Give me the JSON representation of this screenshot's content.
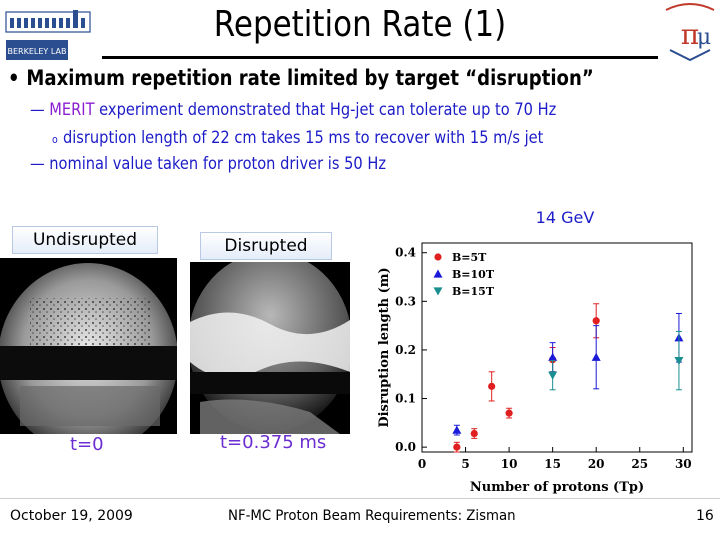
{
  "title": "Repetition Rate (1)",
  "logo_left": {
    "icon": "berkeley-lab-logo-icon",
    "text": "BERKELEY LAB"
  },
  "logo_right": {
    "icon": "neutrino-factory-muon-collider-logo-icon"
  },
  "bullet_main": "Maximum repetition rate limited by target “disruption”",
  "sub1": {
    "dash": "—",
    "highlight": "MERIT",
    "rest": " experiment demonstrated that Hg-jet can tolerate up to 70 Hz"
  },
  "sub2": {
    "marker": "o",
    "text": "disruption length of 22 cm takes 15 ms to recover with 15 m/s jet"
  },
  "sub3": {
    "dash": "—",
    "text": "nominal value taken for proton driver is 50 Hz"
  },
  "panels": {
    "undisrupted_caption": "Undisrupted",
    "disrupted_caption": "Disrupted",
    "undisrupted_time": "t=0",
    "disrupted_time": "t=0.375 ms"
  },
  "chart_annotation": "14 GeV",
  "chart_data": {
    "type": "scatter",
    "xlabel": "Number of protons (Tp)",
    "ylabel": "Disruption length (m)",
    "xlim": [
      0,
      31
    ],
    "ylim": [
      -0.01,
      0.42
    ],
    "xticks": [
      0,
      5,
      10,
      15,
      20,
      25,
      30
    ],
    "yticks": [
      0.0,
      0.1,
      0.2,
      0.3,
      0.4
    ],
    "xtick_labels": [
      "0",
      "5",
      "10",
      "15",
      "20",
      "25",
      "30"
    ],
    "ytick_labels": [
      "0.0",
      "0.1",
      "0.2",
      "0.3",
      "0.4"
    ],
    "legend_position": "top-left",
    "series": [
      {
        "name": "B=5T",
        "marker": "circle",
        "color": "#e02020",
        "points": [
          {
            "x": 4.0,
            "y": 0.0,
            "err": 0.01
          },
          {
            "x": 6.0,
            "y": 0.028,
            "err": 0.01
          },
          {
            "x": 8.0,
            "y": 0.125,
            "err": 0.03
          },
          {
            "x": 10.0,
            "y": 0.07,
            "err": 0.01
          },
          {
            "x": 15.0,
            "y": 0.18,
            "err": 0.025
          },
          {
            "x": 20.0,
            "y": 0.26,
            "err": 0.035
          }
        ]
      },
      {
        "name": "B=10T",
        "marker": "triangle-up",
        "color": "#1a1ad8",
        "points": [
          {
            "x": 4.0,
            "y": 0.035,
            "err": 0.01
          },
          {
            "x": 15.0,
            "y": 0.185,
            "err": 0.03
          },
          {
            "x": 20.0,
            "y": 0.185,
            "err": 0.065
          },
          {
            "x": 29.5,
            "y": 0.225,
            "err": 0.05
          }
        ]
      },
      {
        "name": "B=15T",
        "marker": "triangle-down",
        "color": "#1a8f8f",
        "points": [
          {
            "x": 15.0,
            "y": 0.148,
            "err": 0.03
          },
          {
            "x": 29.5,
            "y": 0.178,
            "err": 0.06
          }
        ]
      }
    ]
  },
  "footer": {
    "date": "October 19, 2009",
    "center": "NF-MC Proton Beam Requirements: Zisman",
    "page": "16"
  }
}
